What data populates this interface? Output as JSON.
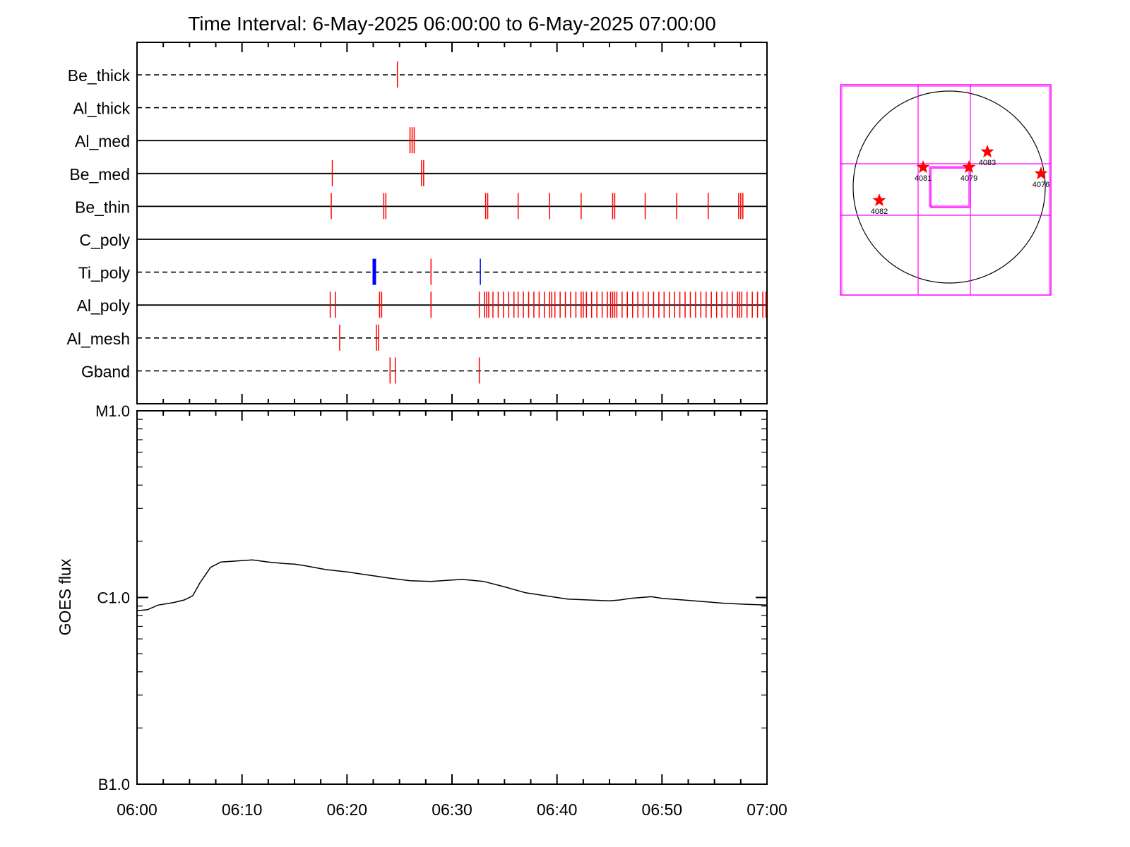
{
  "title": "Time Interval:  6-May-2025 06:00:00 to  6-May-2025 07:00:00",
  "chart_data": [
    {
      "type": "event-timeline",
      "x_range": [
        "06:00",
        "07:00"
      ],
      "x_unit": "minutes after 06:00",
      "channels": [
        {
          "name": "Be_thick",
          "style": "dashed",
          "events": [
            {
              "t": 24.8,
              "color": "red"
            }
          ]
        },
        {
          "name": "Al_thick",
          "style": "dashed",
          "events": []
        },
        {
          "name": "Al_med",
          "style": "solid",
          "events": [
            {
              "t": 26.0,
              "color": "red"
            },
            {
              "t": 26.2,
              "color": "red"
            },
            {
              "t": 26.4,
              "color": "red"
            }
          ]
        },
        {
          "name": "Be_med",
          "style": "solid",
          "events": [
            {
              "t": 18.6,
              "color": "red"
            },
            {
              "t": 27.1,
              "color": "red"
            },
            {
              "t": 27.3,
              "color": "red"
            }
          ]
        },
        {
          "name": "Be_thin",
          "style": "solid",
          "events": [
            {
              "t": 18.5,
              "color": "red"
            },
            {
              "t": 23.5,
              "color": "red"
            },
            {
              "t": 23.7,
              "color": "red"
            },
            {
              "t": 33.2,
              "color": "red"
            },
            {
              "t": 33.4,
              "color": "red"
            },
            {
              "t": 36.3,
              "color": "red"
            },
            {
              "t": 39.3,
              "color": "red"
            },
            {
              "t": 42.3,
              "color": "red"
            },
            {
              "t": 45.3,
              "color": "red"
            },
            {
              "t": 45.5,
              "color": "red"
            },
            {
              "t": 48.4,
              "color": "red"
            },
            {
              "t": 51.4,
              "color": "red"
            },
            {
              "t": 54.4,
              "color": "red"
            },
            {
              "t": 57.3,
              "color": "red"
            },
            {
              "t": 57.5,
              "color": "red"
            },
            {
              "t": 57.7,
              "color": "red"
            }
          ]
        },
        {
          "name": "C_poly",
          "style": "solid",
          "events": []
        },
        {
          "name": "Ti_poly",
          "style": "dashed",
          "events": [
            {
              "t": 22.6,
              "color": "blue",
              "thick": true
            },
            {
              "t": 28.0,
              "color": "red"
            },
            {
              "t": 32.7,
              "color": "blue"
            }
          ]
        },
        {
          "name": "Al_poly",
          "style": "solid",
          "events": [
            {
              "t": 18.4,
              "color": "red"
            },
            {
              "t": 18.9,
              "color": "red"
            },
            {
              "t": 23.1,
              "color": "red"
            },
            {
              "t": 23.3,
              "color": "red"
            },
            {
              "t": 28.0,
              "color": "red"
            },
            {
              "t": 32.6,
              "color": "red"
            },
            {
              "t": 33.1,
              "color": "red"
            },
            {
              "t": 33.3,
              "color": "red"
            },
            {
              "t": 33.5,
              "color": "red"
            },
            {
              "t": 33.9,
              "color": "red"
            },
            {
              "t": 34.4,
              "color": "red"
            },
            {
              "t": 34.9,
              "color": "red"
            },
            {
              "t": 35.4,
              "color": "red"
            },
            {
              "t": 35.9,
              "color": "red"
            },
            {
              "t": 36.3,
              "color": "red"
            },
            {
              "t": 36.8,
              "color": "red"
            },
            {
              "t": 37.3,
              "color": "red"
            },
            {
              "t": 37.8,
              "color": "red"
            },
            {
              "t": 38.3,
              "color": "red"
            },
            {
              "t": 38.8,
              "color": "red"
            },
            {
              "t": 39.3,
              "color": "red"
            },
            {
              "t": 39.5,
              "color": "red"
            },
            {
              "t": 39.8,
              "color": "red"
            },
            {
              "t": 40.3,
              "color": "red"
            },
            {
              "t": 40.8,
              "color": "red"
            },
            {
              "t": 41.3,
              "color": "red"
            },
            {
              "t": 41.8,
              "color": "red"
            },
            {
              "t": 42.3,
              "color": "red"
            },
            {
              "t": 42.5,
              "color": "red"
            },
            {
              "t": 42.8,
              "color": "red"
            },
            {
              "t": 43.3,
              "color": "red"
            },
            {
              "t": 43.8,
              "color": "red"
            },
            {
              "t": 44.3,
              "color": "red"
            },
            {
              "t": 44.8,
              "color": "red"
            },
            {
              "t": 45.1,
              "color": "red"
            },
            {
              "t": 45.3,
              "color": "red"
            },
            {
              "t": 45.5,
              "color": "red"
            },
            {
              "t": 45.7,
              "color": "red"
            },
            {
              "t": 46.2,
              "color": "red"
            },
            {
              "t": 46.7,
              "color": "red"
            },
            {
              "t": 47.2,
              "color": "red"
            },
            {
              "t": 47.7,
              "color": "red"
            },
            {
              "t": 48.2,
              "color": "red"
            },
            {
              "t": 48.7,
              "color": "red"
            },
            {
              "t": 49.2,
              "color": "red"
            },
            {
              "t": 49.7,
              "color": "red"
            },
            {
              "t": 50.2,
              "color": "red"
            },
            {
              "t": 50.7,
              "color": "red"
            },
            {
              "t": 51.2,
              "color": "red"
            },
            {
              "t": 51.7,
              "color": "red"
            },
            {
              "t": 52.2,
              "color": "red"
            },
            {
              "t": 52.7,
              "color": "red"
            },
            {
              "t": 53.2,
              "color": "red"
            },
            {
              "t": 53.7,
              "color": "red"
            },
            {
              "t": 54.2,
              "color": "red"
            },
            {
              "t": 54.7,
              "color": "red"
            },
            {
              "t": 55.2,
              "color": "red"
            },
            {
              "t": 55.7,
              "color": "red"
            },
            {
              "t": 56.2,
              "color": "red"
            },
            {
              "t": 56.7,
              "color": "red"
            },
            {
              "t": 57.2,
              "color": "red"
            },
            {
              "t": 57.4,
              "color": "red"
            },
            {
              "t": 57.6,
              "color": "red"
            },
            {
              "t": 58.1,
              "color": "red"
            },
            {
              "t": 58.6,
              "color": "red"
            },
            {
              "t": 59.1,
              "color": "red"
            },
            {
              "t": 59.6,
              "color": "red"
            },
            {
              "t": 59.9,
              "color": "red"
            }
          ]
        },
        {
          "name": "Al_mesh",
          "style": "dashed",
          "events": [
            {
              "t": 19.3,
              "color": "red"
            },
            {
              "t": 22.8,
              "color": "red"
            },
            {
              "t": 23.0,
              "color": "red"
            }
          ]
        },
        {
          "name": "Gband",
          "style": "dashed",
          "events": [
            {
              "t": 24.1,
              "color": "red"
            },
            {
              "t": 24.6,
              "color": "red"
            },
            {
              "t": 32.6,
              "color": "red"
            }
          ]
        }
      ]
    },
    {
      "type": "line",
      "ylabel": "GOES flux",
      "yscale": "log",
      "y_unit": "W/m^2",
      "ylim": [
        1e-07,
        1e-05
      ],
      "yticks": [
        {
          "value": 1e-07,
          "label": "B1.0"
        },
        {
          "value": 1e-06,
          "label": "C1.0"
        },
        {
          "value": 1e-05,
          "label": "M1.0"
        }
      ],
      "xticks": [
        "06:00",
        "06:10",
        "06:20",
        "06:30",
        "06:40",
        "06:50",
        "07:00"
      ],
      "x_unit": "minutes after 06:00",
      "series": [
        {
          "x": [
            0,
            1,
            2,
            3.5,
            4.5,
            5.3,
            6,
            7,
            8,
            9.5,
            11,
            12.5,
            14,
            15,
            16,
            18,
            20,
            22,
            24,
            26,
            28,
            30,
            31,
            33,
            35,
            37,
            39,
            41,
            43,
            45,
            46,
            47,
            48,
            49,
            50,
            52,
            54,
            56,
            58,
            60
          ],
          "y": [
            8.5e-07,
            8.6e-07,
            9.1e-07,
            9.4e-07,
            9.7e-07,
            1.02e-06,
            1.2e-06,
            1.45e-06,
            1.55e-06,
            1.57e-06,
            1.59e-06,
            1.55e-06,
            1.52e-06,
            1.51e-06,
            1.48e-06,
            1.41e-06,
            1.37e-06,
            1.32e-06,
            1.27e-06,
            1.23e-06,
            1.22e-06,
            1.24e-06,
            1.25e-06,
            1.22e-06,
            1.14e-06,
            1.06e-06,
            1.02e-06,
            9.8e-07,
            9.7e-07,
            9.6e-07,
            9.7e-07,
            9.9e-07,
            1e-06,
            1.01e-06,
            9.9e-07,
            9.7e-07,
            9.5e-07,
            9.3e-07,
            9.2e-07,
            9.1e-07
          ]
        }
      ]
    },
    {
      "type": "solar-disk-map",
      "regions": [
        {
          "label": "4083",
          "color": "red",
          "marker": "star"
        },
        {
          "label": "4081",
          "color": "red",
          "marker": "star"
        },
        {
          "label": "4079",
          "color": "red",
          "marker": "star"
        },
        {
          "label": "4076",
          "color": "red",
          "marker": "star"
        },
        {
          "label": "4082",
          "color": "red",
          "marker": "star"
        }
      ],
      "grid_color": "#ff00ff"
    }
  ]
}
